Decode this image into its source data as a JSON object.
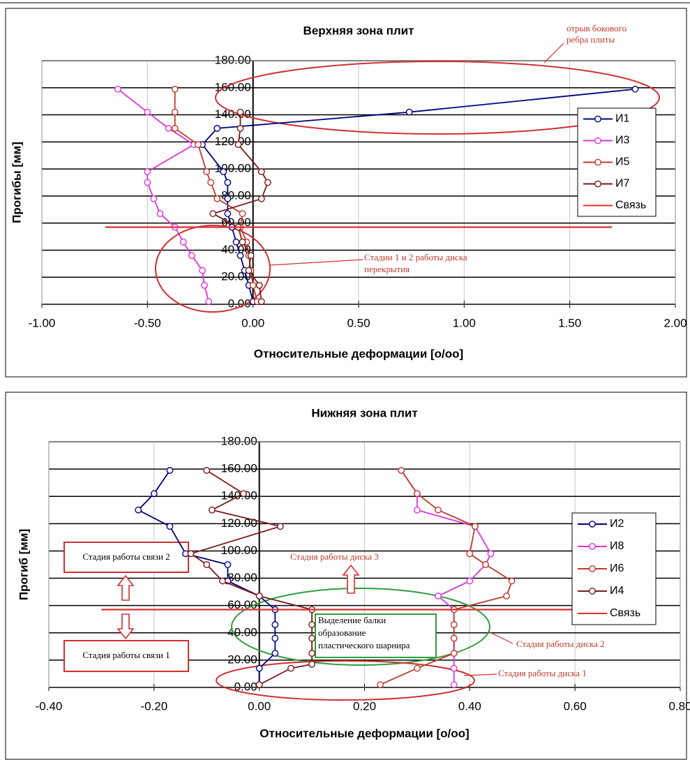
{
  "chart_data": [
    {
      "type": "scatter-line",
      "title": "Верхняя зона плит",
      "xlabel": "Относительные деформации [о/оо]",
      "ylabel": "Прогибы [мм]",
      "xlim": [
        -1,
        2
      ],
      "ylim": [
        0,
        180
      ],
      "xticks": [
        {
          "value": -1,
          "label": "-1.00"
        },
        {
          "value": -0.5,
          "label": "-0.50"
        },
        {
          "value": 0,
          "label": "0.00"
        },
        {
          "value": 0.5,
          "label": "0.50"
        },
        {
          "value": 1,
          "label": "1.00"
        },
        {
          "value": 1.5,
          "label": "1.50"
        },
        {
          "value": 2,
          "label": "2.00"
        }
      ],
      "yticks": [
        {
          "value": 0,
          "label": "0.00"
        },
        {
          "value": 20,
          "label": "20.00"
        },
        {
          "value": 40,
          "label": "40.00"
        },
        {
          "value": 60,
          "label": "60.00"
        },
        {
          "value": 80,
          "label": "80.00"
        },
        {
          "value": 100,
          "label": "100.00"
        },
        {
          "value": 120,
          "label": "120.00"
        },
        {
          "value": 140,
          "label": "140.00"
        },
        {
          "value": 160,
          "label": "160.00"
        },
        {
          "value": 180,
          "label": "180.00"
        }
      ],
      "grid": true,
      "legend": "right",
      "series": [
        {
          "name": "И1",
          "color": "#000080",
          "markers": true,
          "x": [
            0,
            -0.02,
            -0.04,
            -0.06,
            -0.08,
            -0.1,
            -0.12,
            -0.12,
            -0.12,
            -0.14,
            -0.24,
            -0.17,
            0.74,
            1.81
          ],
          "values": [
            2,
            14,
            25,
            36,
            46,
            57,
            67,
            78,
            90,
            98,
            118,
            130,
            142,
            159
          ]
        },
        {
          "name": "И3",
          "color": "#dd33dd",
          "markers": true,
          "x": [
            -0.21,
            -0.23,
            -0.24,
            -0.29,
            -0.33,
            -0.37,
            -0.44,
            -0.47,
            -0.5,
            -0.5,
            -0.28,
            -0.4,
            -0.5,
            -0.64
          ],
          "values": [
            2,
            14,
            25,
            36,
            46,
            57,
            67,
            78,
            90,
            98,
            118,
            130,
            142,
            159
          ]
        },
        {
          "name": "И5",
          "color": "#c0392b",
          "markers": true,
          "x": [
            0.02,
            0,
            -0.01,
            -0.02,
            -0.03,
            -0.06,
            -0.05,
            -0.17,
            -0.2,
            -0.22,
            -0.26,
            -0.37,
            -0.37,
            -0.37
          ],
          "values": [
            2,
            14,
            25,
            36,
            46,
            57,
            67,
            78,
            90,
            98,
            118,
            130,
            142,
            159
          ]
        },
        {
          "name": "И7",
          "color": "#7a1a1a",
          "markers": true,
          "x": [
            0.04,
            0.03,
            -0.02,
            -0.01,
            -0.05,
            -0.07,
            -0.19,
            0.04,
            0.07,
            0.04,
            -0.07,
            -0.06,
            -0.06
          ],
          "values": [
            2,
            14,
            25,
            36,
            46,
            57,
            67,
            78,
            90,
            98,
            118,
            130,
            142
          ]
        },
        {
          "name": "Связь",
          "color": "#e03030",
          "markers": false,
          "x": [
            -0.7,
            1.7
          ],
          "values": [
            57,
            57
          ]
        }
      ],
      "annotations": [
        {
          "lines": [
            "отрыв бокового",
            "ребра плиты"
          ]
        },
        {
          "lines": [
            "Стадии 1 и 2 работы диска",
            "перекрытия"
          ]
        }
      ]
    },
    {
      "type": "scatter-line",
      "title": "Нижняя зона плит",
      "xlabel": "Относительные деформации [о/оо]",
      "ylabel": "Прогиб [мм]",
      "xlim": [
        -0.4,
        0.8
      ],
      "ylim": [
        0,
        180
      ],
      "xticks": [
        {
          "value": -0.4,
          "label": "-0.40"
        },
        {
          "value": -0.2,
          "label": "-0.20"
        },
        {
          "value": 0,
          "label": "0.00"
        },
        {
          "value": 0.2,
          "label": "0.20"
        },
        {
          "value": 0.4,
          "label": "0.40"
        },
        {
          "value": 0.6,
          "label": "0.60"
        },
        {
          "value": 0.8,
          "label": "0.80"
        }
      ],
      "yticks": [
        {
          "value": 0,
          "label": "0.00"
        },
        {
          "value": 20,
          "label": "20.00"
        },
        {
          "value": 40,
          "label": "40.00"
        },
        {
          "value": 60,
          "label": "60.00"
        },
        {
          "value": 80,
          "label": "80.00"
        },
        {
          "value": 100,
          "label": "100.00"
        },
        {
          "value": 120,
          "label": "120.00"
        },
        {
          "value": 140,
          "label": "140.00"
        },
        {
          "value": 160,
          "label": "160.00"
        },
        {
          "value": 180,
          "label": "180.00"
        }
      ],
      "grid": true,
      "legend": "right",
      "series": [
        {
          "name": "И2",
          "color": "#000080",
          "markers": true,
          "x": [
            0,
            0,
            0.03,
            0.03,
            0.03,
            0.03,
            0,
            -0.06,
            -0.06,
            -0.14,
            -0.17,
            -0.23,
            -0.2,
            -0.17
          ],
          "values": [
            2,
            14,
            25,
            36,
            46,
            57,
            67,
            78,
            90,
            98,
            118,
            130,
            142,
            159
          ]
        },
        {
          "name": "И8",
          "color": "#dd33dd",
          "markers": true,
          "x": [
            0.37,
            0.37,
            0.37,
            0.37,
            0.37,
            0.37,
            0.34,
            0.4,
            0.43,
            0.44,
            0.41,
            0.3,
            0.3,
            0.27
          ],
          "values": [
            2,
            14,
            25,
            36,
            46,
            57,
            67,
            78,
            90,
            98,
            118,
            130,
            142,
            159
          ]
        },
        {
          "name": "И6",
          "color": "#c0392b",
          "markers": true,
          "x": [
            0.23,
            0.3,
            0.37,
            0.37,
            0.37,
            0.37,
            0.47,
            0.48,
            0.43,
            0.4,
            0.41,
            0.34,
            0.3,
            0.27
          ],
          "values": [
            2,
            14,
            25,
            36,
            46,
            57,
            67,
            78,
            90,
            98,
            118,
            130,
            142,
            159
          ]
        },
        {
          "name": "И4",
          "color": "#7a1a1a",
          "markers": true,
          "x": [
            0,
            0.06,
            0.1,
            0.1,
            0.1,
            0.1,
            0.1,
            0,
            -0.07,
            -0.1,
            -0.13,
            0.04,
            -0.09,
            -0.03,
            -0.1
          ],
          "values": [
            2,
            14,
            17,
            25,
            36,
            46,
            57,
            67,
            78,
            90,
            98,
            118,
            130,
            142,
            159
          ]
        },
        {
          "name": "Связь",
          "color": "#e03030",
          "markers": false,
          "x": [
            -0.3,
            0.6
          ],
          "values": [
            57,
            57
          ]
        }
      ],
      "annotations": [
        {
          "lines": [
            "Стадия работы связи 2"
          ]
        },
        {
          "lines": [
            "Стадия работы связи 1"
          ]
        },
        {
          "lines": [
            "Стадия работы диска 3"
          ]
        },
        {
          "lines": [
            "Выделение балки",
            "образование",
            "пластического шарнира"
          ]
        },
        {
          "lines": [
            "Стадия работы диска 2"
          ]
        },
        {
          "lines": [
            "Стадия работы диска 1"
          ]
        }
      ]
    }
  ]
}
